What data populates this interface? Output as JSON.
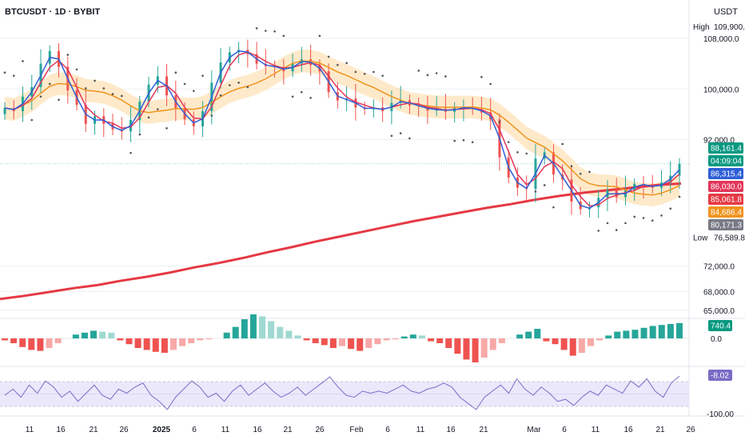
{
  "header": {
    "title": "BTCUSDT · 1D · BYBIT",
    "quote": "USDT"
  },
  "colors": {
    "up": "#26a69a",
    "down": "#ef5350",
    "down_light": "#f7a9a7",
    "up_light": "#9fd9d2",
    "fast_ma": "#2f5fd6",
    "mid_ma": "#e2365b",
    "slow_ma": "#f0931e",
    "long_ma": "#e53944",
    "band": "#fde3b8",
    "psar": "#555555",
    "osc": "#7b6cc6",
    "osc_fill": "#ece8fb"
  },
  "chart_data": {
    "type": "candlestick",
    "x_ticks": [
      "11",
      "16",
      "21",
      "26",
      "2025",
      "6",
      "11",
      "16",
      "21",
      "26",
      "Feb",
      "6",
      "11",
      "16",
      "21",
      "Mar",
      "6",
      "11",
      "16",
      "21",
      "26"
    ],
    "y_ticks": [
      "108,000.0",
      "100,000.0",
      "92,000.0",
      "72,000.0",
      "68,000.0",
      "65,000.0"
    ],
    "ylim": [
      62000,
      113000
    ],
    "high_label": "High",
    "high_value": "109,900.0",
    "low_label": "Low",
    "low_value": "76,589.8",
    "price_labels": [
      {
        "name": "last",
        "value": "88,161.4",
        "color": "#089981"
      },
      {
        "name": "countdown",
        "value": "04:09:04",
        "color": "#089981"
      },
      {
        "name": "fast_ma",
        "value": "86,315.4",
        "color": "#2f5fd6"
      },
      {
        "name": "mid_ma",
        "value": "86,030.0",
        "color": "#e2365b"
      },
      {
        "name": "long_ma",
        "value": "85,061.8",
        "color": "#e53944"
      },
      {
        "name": "slow_ma",
        "value": "84,686.4",
        "color": "#f0931e"
      },
      {
        "name": "psar",
        "value": "80,171.3",
        "color": "#787b86"
      }
    ],
    "long_ma": [
      66800,
      67300,
      67900,
      68500,
      69000,
      69700,
      70300,
      71000,
      71800,
      72500,
      73300,
      74200,
      75000,
      75900,
      76700,
      77500,
      78300,
      79100,
      79800,
      80500,
      81200,
      81800,
      82500,
      83100,
      83600,
      84000,
      84400,
      84800,
      85061.8
    ],
    "close_series": [
      97000,
      96500,
      98800,
      100300,
      104000,
      106000,
      103500,
      99800,
      97500,
      94500,
      95700,
      94500,
      93600,
      93300,
      95100,
      98000,
      100700,
      102000,
      99000,
      97000,
      95200,
      94100,
      96500,
      101000,
      104200,
      105800,
      106200,
      105500,
      104000,
      103600,
      103500,
      102800,
      104000,
      104700,
      103800,
      102800,
      99500,
      98200,
      98500,
      97100,
      96800,
      97100,
      96500,
      97800,
      98200,
      97400,
      97300,
      96600,
      96900,
      96400,
      97000,
      97100,
      96800,
      96300,
      95200,
      89200,
      86000,
      84400,
      84200,
      89000,
      90000,
      86500,
      85700,
      82200,
      81000,
      81300,
      82800,
      84000,
      82900,
      84000,
      85000,
      84800,
      84400,
      85200,
      86300,
      88161.4
    ],
    "macd_hist": [
      -2,
      -5,
      -9,
      -12,
      -13,
      -10,
      -5,
      0,
      4,
      6,
      8,
      7,
      6,
      -2,
      -6,
      -10,
      -12,
      -14,
      -15,
      -12,
      -8,
      -5,
      -2,
      -1,
      0,
      6,
      12,
      20,
      25,
      23,
      18,
      12,
      8,
      3,
      -2,
      -5,
      -7,
      -10,
      -8,
      -11,
      -13,
      -10,
      -6,
      -2,
      -1,
      2,
      4,
      3,
      -3,
      -5,
      -10,
      -16,
      -22,
      -25,
      -20,
      -12,
      -5,
      0,
      4,
      7,
      10,
      -3,
      -6,
      -12,
      -18,
      -15,
      -8,
      -2,
      3,
      7,
      8,
      9,
      11,
      13,
      14,
      15,
      16
    ],
    "macd_label": "740.4",
    "macd_zero": "0.0",
    "osc_label": "-8.02",
    "osc_min": "-100.00",
    "osc_series": [
      -55,
      -40,
      -60,
      -30,
      -50,
      -20,
      -35,
      -60,
      -45,
      -70,
      -50,
      -30,
      -55,
      -65,
      -40,
      -50,
      -35,
      -25,
      -55,
      -70,
      -90,
      -60,
      -40,
      -20,
      -35,
      -60,
      -50,
      -70,
      -45,
      -30,
      -55,
      -40,
      -25,
      -45,
      -60,
      -50,
      -35,
      -55,
      -40,
      -25,
      -10,
      -35,
      -55,
      -60,
      -45,
      -50,
      -45,
      -50,
      -40,
      -30,
      -45,
      -50,
      -40,
      -35,
      -25,
      -35,
      -60,
      -75,
      -90,
      -60,
      -45,
      -30,
      -50,
      -15,
      -40,
      -55,
      -35,
      -50,
      -70,
      -65,
      -80,
      -60,
      -45,
      -55,
      -30,
      -40,
      -50,
      -20,
      -35,
      -15,
      -45,
      -60,
      -25,
      -8.02
    ]
  }
}
